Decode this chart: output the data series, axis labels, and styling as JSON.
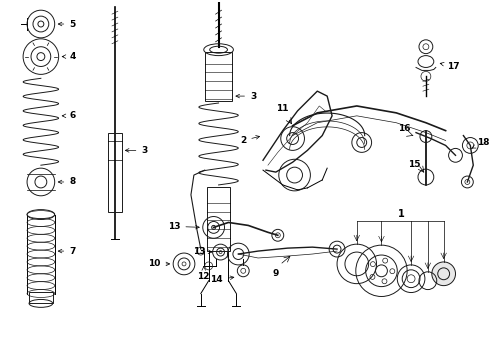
{
  "background_color": "#ffffff",
  "fig_width": 4.9,
  "fig_height": 3.6,
  "dpi": 100,
  "line_color": "#1a1a1a",
  "label_fontsize": 6.5,
  "label_fontweight": "bold",
  "gray": "#888888",
  "light_gray": "#cccccc"
}
